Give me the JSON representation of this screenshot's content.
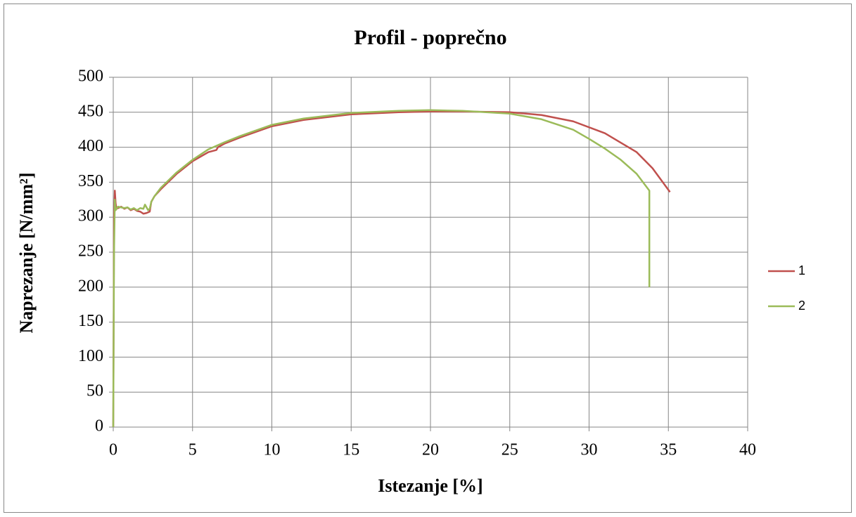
{
  "chart_data": {
    "type": "line",
    "title": "Profil - poprečno",
    "x_label": "Istezanje [%]",
    "y_label": "Naprezanje [N/mm²]",
    "xlim": [
      0,
      40
    ],
    "xticks": [
      0,
      5,
      10,
      15,
      20,
      25,
      30,
      35,
      40
    ],
    "ylim": [
      0,
      500
    ],
    "yticks": [
      0,
      50,
      100,
      150,
      200,
      250,
      300,
      350,
      400,
      450,
      500
    ],
    "grid": true,
    "legend": "right",
    "series": [
      {
        "name": "1",
        "color": "#c0504d",
        "x": [
          0,
          0.05,
          0.1,
          0.15,
          0.2,
          0.3,
          0.5,
          0.7,
          0.9,
          1.1,
          1.3,
          1.5,
          1.7,
          1.9,
          2.1,
          2.3,
          2.4,
          2.6,
          3,
          4,
          5,
          6,
          6.5,
          6.6,
          7,
          8,
          10,
          12,
          15,
          18,
          20,
          22,
          25,
          27,
          29,
          31,
          33,
          34,
          35.1
        ],
        "values": [
          0,
          300,
          338,
          320,
          312,
          313,
          315,
          312,
          314,
          310,
          312,
          309,
          308,
          305,
          306,
          308,
          322,
          330,
          340,
          362,
          380,
          393,
          396,
          400,
          405,
          414,
          430,
          439,
          447,
          450,
          451,
          451,
          450,
          446,
          437,
          420,
          393,
          370,
          336
        ]
      },
      {
        "name": "2",
        "color": "#9bbb59",
        "x": [
          0,
          0.05,
          0.1,
          0.15,
          0.3,
          0.5,
          0.7,
          0.9,
          1.1,
          1.3,
          1.5,
          1.7,
          1.9,
          2.0,
          2.2,
          2.3,
          2.4,
          2.6,
          3,
          4,
          5,
          6,
          7,
          8,
          10,
          12,
          15,
          18,
          20,
          22,
          25,
          27,
          29,
          30,
          31,
          32,
          33,
          33.8,
          33.8
        ],
        "values": [
          0,
          250,
          325,
          310,
          315,
          314,
          313,
          314,
          311,
          313,
          310,
          313,
          312,
          318,
          310,
          312,
          322,
          330,
          342,
          364,
          382,
          397,
          407,
          416,
          432,
          441,
          449,
          452,
          453,
          452,
          448,
          440,
          425,
          412,
          398,
          382,
          362,
          338,
          200
        ]
      }
    ]
  }
}
